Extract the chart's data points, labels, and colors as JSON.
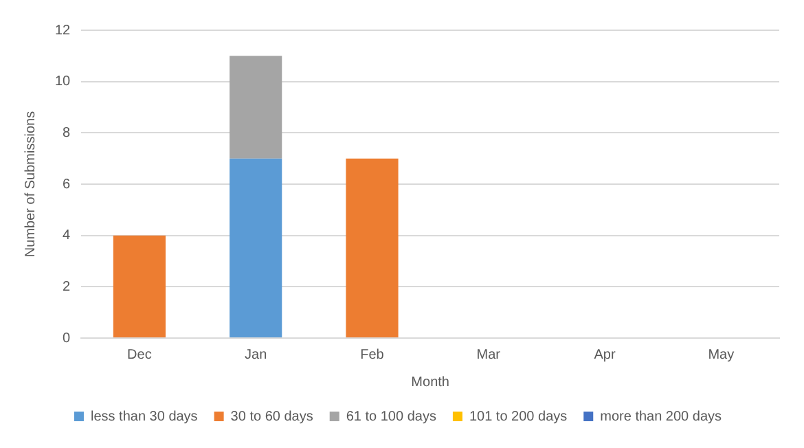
{
  "chart_data": {
    "type": "bar",
    "stacked": true,
    "xlabel": "Month",
    "ylabel": "Number of Submissions",
    "categories": [
      "Dec",
      "Jan",
      "Feb",
      "Mar",
      "Apr",
      "May"
    ],
    "series": [
      {
        "name": "less than 30 days",
        "color": "#5b9bd5",
        "values": [
          0,
          7,
          0,
          0,
          0,
          0
        ]
      },
      {
        "name": "30 to 60 days",
        "color": "#ed7d31",
        "values": [
          4,
          0,
          7,
          0,
          0,
          0
        ]
      },
      {
        "name": "61 to 100 days",
        "color": "#a5a5a5",
        "values": [
          0,
          4,
          0,
          0,
          0,
          0
        ]
      },
      {
        "name": "101 to 200 days",
        "color": "#ffc000",
        "values": [
          0,
          0,
          0,
          0,
          0,
          0
        ]
      },
      {
        "name": "more than 200 days",
        "color": "#4472c4",
        "values": [
          0,
          0,
          0,
          0,
          0,
          0
        ]
      }
    ],
    "ylim": [
      0,
      12
    ],
    "yticks": [
      0,
      2,
      4,
      6,
      8,
      10,
      12
    ],
    "grid": "y",
    "legend": "bottom"
  }
}
